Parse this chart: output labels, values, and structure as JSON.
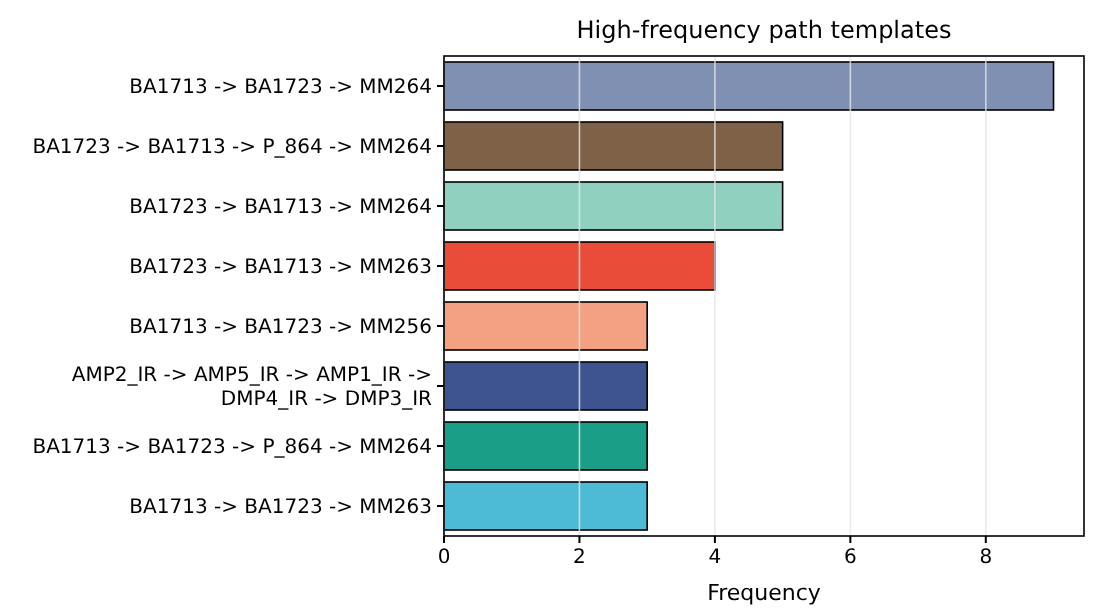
{
  "chart_data": {
    "type": "bar",
    "orientation": "horizontal",
    "title": "High-frequency path templates",
    "xlabel": "Frequency",
    "categories": [
      "BA1713 -> BA1723 -> MM264",
      "BA1723 -> BA1713 -> P_864 -> MM264",
      "BA1723 -> BA1713 -> MM264",
      "BA1723 -> BA1713 -> MM263",
      "BA1713 -> BA1723 -> MM256",
      "AMP2_IR -> AMP5_IR -> AMP1_IR ->\nDMP4_IR -> DMP3_IR",
      "BA1713 -> BA1723 -> P_864 -> MM264",
      "BA1713 -> BA1723 -> MM263"
    ],
    "values": [
      9,
      5,
      5,
      4,
      3,
      3,
      3,
      3
    ],
    "colors": [
      "#8090b3",
      "#7f6148",
      "#8fd0bf",
      "#e94c38",
      "#f4a082",
      "#3d5490",
      "#1a9e87",
      "#4dbbd5"
    ],
    "xlim": [
      0,
      9.45
    ],
    "xticks": [
      0,
      2,
      4,
      6,
      8
    ],
    "grid": "x"
  }
}
